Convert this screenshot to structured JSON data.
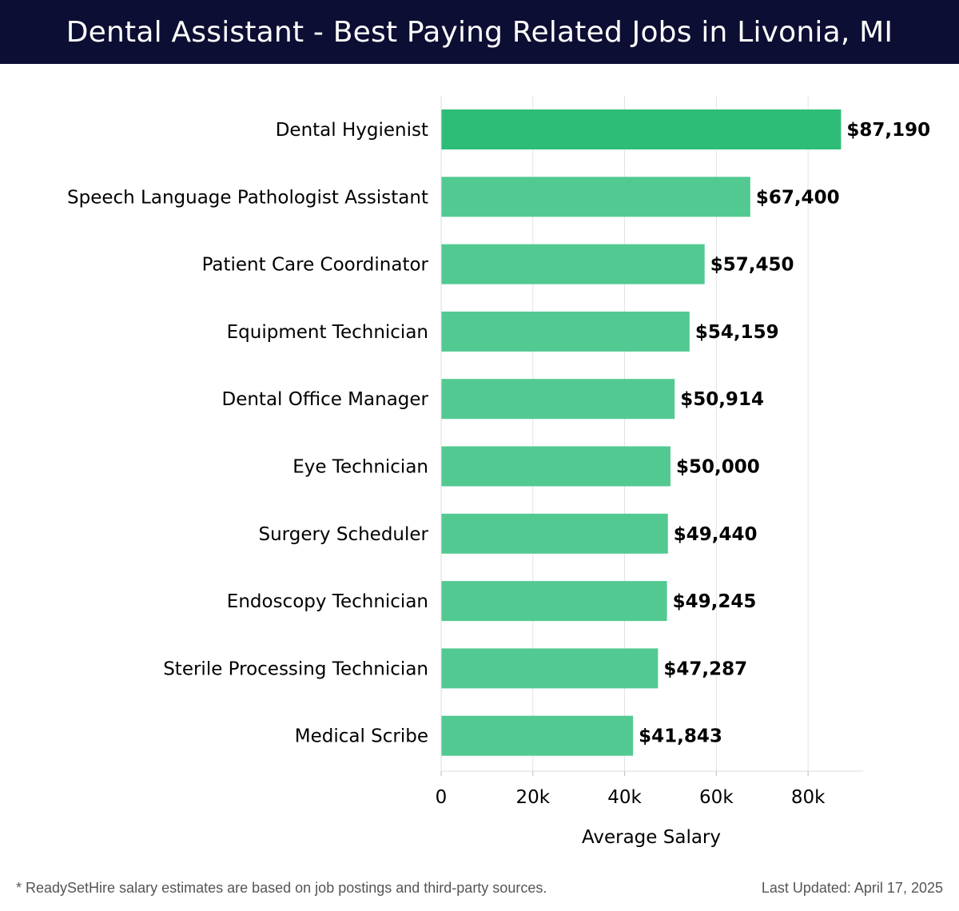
{
  "header": {
    "title": "Dental Assistant - Best Paying Related Jobs in Livonia, MI"
  },
  "chart_data": {
    "type": "bar",
    "orientation": "horizontal",
    "categories": [
      "Dental Hygienist",
      "Speech Language Pathologist Assistant",
      "Patient Care Coordinator",
      "Equipment Technician",
      "Dental Office Manager",
      "Eye Technician",
      "Surgery Scheduler",
      "Endoscopy Technician",
      "Sterile Processing Technician",
      "Medical Scribe"
    ],
    "values": [
      87190,
      67400,
      57450,
      54159,
      50914,
      50000,
      49440,
      49245,
      47287,
      41843
    ],
    "value_labels": [
      "$87,190",
      "$67,400",
      "$57,450",
      "$54,159",
      "$50,914",
      "$50,000",
      "$49,440",
      "$49,245",
      "$47,287",
      "$41,843"
    ],
    "xlabel": "Average Salary",
    "ylabel": "",
    "xlim": [
      0,
      92000
    ],
    "xticks": [
      0,
      20000,
      40000,
      60000,
      80000
    ],
    "xtick_labels": [
      "0",
      "20k",
      "40k",
      "60k",
      "80k"
    ],
    "grid": "vertical",
    "colors": {
      "top_bar": "#2dbd77",
      "bar": "#52c991",
      "grid": "#e3e3e3",
      "header_bg": "#0d0e33"
    }
  },
  "footer": {
    "note": "* ReadySetHire salary estimates are based on job postings and third-party sources.",
    "updated": "Last Updated: April 17, 2025"
  }
}
